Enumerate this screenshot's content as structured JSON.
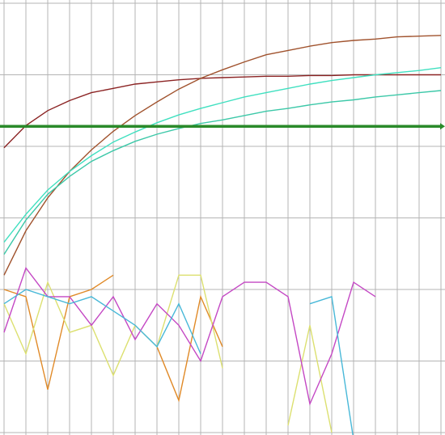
{
  "chart_data": {
    "type": "line",
    "x": [
      0,
      1,
      2,
      3,
      4,
      5,
      6,
      7,
      8,
      9,
      10,
      11,
      12,
      13,
      14,
      15,
      16,
      17,
      18,
      19,
      20
    ],
    "xlim": [
      0,
      20
    ],
    "xticks": [
      0,
      1,
      2,
      3,
      4,
      5,
      6,
      7,
      8,
      9,
      10,
      11,
      12,
      13,
      14,
      15,
      16,
      17,
      18,
      19,
      20
    ],
    "ylim": [
      0,
      6
    ],
    "yticks": [
      0,
      1,
      2,
      3,
      4,
      5,
      6
    ],
    "grid": true,
    "threshold": 4.28,
    "threshold_color": "#2a8a2a",
    "series": [
      {
        "color": "#8b2323",
        "values": [
          3.98,
          4.29,
          4.5,
          4.64,
          4.75,
          4.81,
          4.87,
          4.9,
          4.93,
          4.95,
          4.96,
          4.97,
          4.98,
          4.98,
          4.99,
          4.99,
          5.0,
          5.0,
          5.0,
          5.0,
          5.0
        ]
      },
      {
        "color": "#a0522d",
        "values": [
          2.2,
          2.82,
          3.28,
          3.65,
          3.95,
          4.21,
          4.43,
          4.62,
          4.8,
          4.95,
          5.07,
          5.18,
          5.28,
          5.34,
          5.4,
          5.45,
          5.48,
          5.5,
          5.53,
          5.54,
          5.55
        ]
      },
      {
        "color": "#40e0c0",
        "values": [
          2.66,
          3.05,
          3.39,
          3.65,
          3.87,
          4.06,
          4.2,
          4.33,
          4.44,
          4.53,
          4.61,
          4.69,
          4.75,
          4.81,
          4.87,
          4.92,
          4.96,
          5.0,
          5.03,
          5.06,
          5.1
        ]
      },
      {
        "color": "#3cc8a8",
        "values": [
          2.49,
          2.97,
          3.33,
          3.58,
          3.79,
          3.94,
          4.07,
          4.17,
          4.25,
          4.32,
          4.37,
          4.43,
          4.49,
          4.53,
          4.58,
          4.62,
          4.65,
          4.69,
          4.72,
          4.75,
          4.78
        ]
      },
      {
        "color": "#e08a28",
        "values": [
          2.0,
          1.9,
          0.6,
          1.9,
          2.0,
          2.2,
          null,
          1.2,
          0.45,
          1.9,
          1.2,
          null,
          null,
          null,
          null,
          null,
          null,
          null,
          null,
          null,
          null
        ]
      },
      {
        "color": "#dce070",
        "values": [
          1.8,
          1.1,
          2.1,
          1.4,
          1.5,
          0.8,
          1.5,
          1.2,
          2.2,
          2.2,
          0.9,
          null,
          null,
          0.1,
          1.5,
          0.0,
          null,
          null,
          null,
          null,
          null
        ]
      },
      {
        "color": "#c448c4",
        "values": [
          1.4,
          2.3,
          1.9,
          1.9,
          1.5,
          1.9,
          1.3,
          1.8,
          1.5,
          1.0,
          1.9,
          2.1,
          2.1,
          1.9,
          0.4,
          1.1,
          2.1,
          1.9,
          null,
          null,
          null
        ]
      },
      {
        "color": "#48b8d8",
        "values": [
          1.8,
          2.0,
          1.9,
          1.8,
          1.9,
          1.7,
          1.5,
          1.2,
          1.8,
          1.1,
          null,
          null,
          null,
          null,
          1.8,
          1.9,
          -0.1,
          null,
          null,
          null,
          null
        ]
      }
    ]
  }
}
